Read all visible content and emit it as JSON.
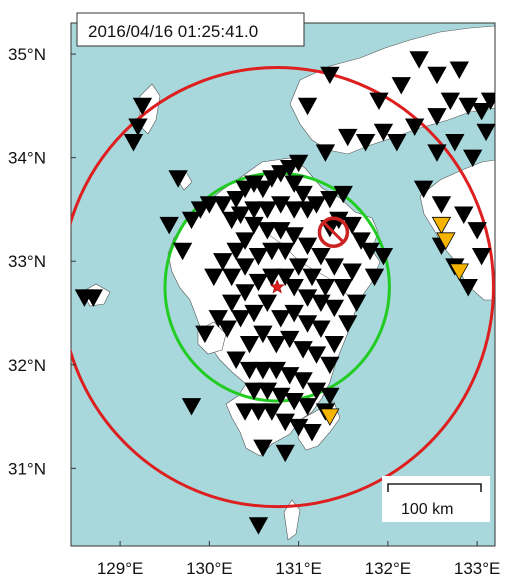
{
  "timestamp": "2016/04/16 01:25:41.0",
  "scale_bar": {
    "label": "100 km",
    "length_km": 100
  },
  "lat_labels": [
    {
      "value": 35,
      "text": "35°N"
    },
    {
      "value": 34,
      "text": "34°N"
    },
    {
      "value": 33,
      "text": "33°N"
    },
    {
      "value": 32,
      "text": "32°N"
    },
    {
      "value": 31,
      "text": "31°N"
    }
  ],
  "lon_labels": [
    {
      "value": 129,
      "text": "129°E"
    },
    {
      "value": 130,
      "text": "130°E"
    },
    {
      "value": 131,
      "text": "131°E"
    },
    {
      "value": 132,
      "text": "132°E"
    },
    {
      "value": 133,
      "text": "133°E"
    }
  ],
  "extent": {
    "lon": [
      128.45,
      133.2
    ],
    "lat": [
      30.25,
      35.3
    ]
  },
  "epicenter": {
    "lon": 130.76,
    "lat": 32.75
  },
  "circles": [
    {
      "name": "s-wave-front",
      "color": "#dd1f1f",
      "center_lon": 130.76,
      "center_lat": 32.75,
      "radius_deg_lat": 2.12
    },
    {
      "name": "p-wave-front",
      "color": "#22cc22",
      "center_lon": 130.76,
      "center_lat": 32.75,
      "radius_deg_lat": 1.1
    }
  ],
  "highlight_station": {
    "lon": 131.39,
    "lat": 33.28,
    "color": "#cc2222"
  },
  "colors": {
    "sea": "#a8d8dc",
    "land": "#ffffff",
    "station": "#000000",
    "triggered": "#f4b400",
    "epicenter": "#dd1f1f"
  },
  "stations": [
    [
      128.7,
      32.65
    ],
    [
      128.6,
      32.65
    ],
    [
      129.25,
      34.5
    ],
    [
      129.2,
      34.3
    ],
    [
      129.15,
      34.15
    ],
    [
      129.65,
      33.8
    ],
    [
      129.55,
      33.35
    ],
    [
      129.7,
      33.1
    ],
    [
      129.8,
      33.4
    ],
    [
      129.9,
      33.5
    ],
    [
      130.0,
      33.55
    ],
    [
      130.15,
      33.55
    ],
    [
      130.3,
      33.6
    ],
    [
      130.4,
      33.7
    ],
    [
      130.5,
      33.75
    ],
    [
      130.6,
      33.7
    ],
    [
      130.7,
      33.8
    ],
    [
      130.8,
      33.85
    ],
    [
      130.9,
      33.9
    ],
    [
      131.0,
      33.95
    ],
    [
      130.95,
      33.75
    ],
    [
      131.05,
      33.65
    ],
    [
      130.25,
      33.4
    ],
    [
      130.35,
      33.45
    ],
    [
      130.5,
      33.5
    ],
    [
      130.65,
      33.5
    ],
    [
      130.8,
      33.55
    ],
    [
      130.95,
      33.5
    ],
    [
      131.1,
      33.5
    ],
    [
      131.2,
      33.55
    ],
    [
      131.35,
      33.6
    ],
    [
      131.5,
      33.65
    ],
    [
      131.45,
      33.4
    ],
    [
      131.6,
      33.35
    ],
    [
      131.7,
      33.2
    ],
    [
      131.8,
      33.1
    ],
    [
      131.95,
      33.05
    ],
    [
      131.85,
      32.85
    ],
    [
      131.6,
      32.9
    ],
    [
      131.4,
      32.95
    ],
    [
      131.25,
      33.05
    ],
    [
      131.1,
      33.15
    ],
    [
      130.95,
      33.25
    ],
    [
      130.8,
      33.3
    ],
    [
      130.65,
      33.3
    ],
    [
      130.5,
      33.35
    ],
    [
      130.4,
      33.2
    ],
    [
      130.3,
      33.1
    ],
    [
      130.15,
      33.0
    ],
    [
      130.05,
      32.85
    ],
    [
      130.25,
      32.85
    ],
    [
      130.4,
      32.95
    ],
    [
      130.55,
      33.05
    ],
    [
      130.7,
      33.1
    ],
    [
      130.85,
      33.1
    ],
    [
      131.0,
      32.95
    ],
    [
      131.15,
      32.85
    ],
    [
      131.3,
      32.75
    ],
    [
      131.5,
      32.75
    ],
    [
      131.65,
      32.6
    ],
    [
      131.55,
      32.4
    ],
    [
      131.4,
      32.55
    ],
    [
      131.25,
      32.6
    ],
    [
      131.1,
      32.65
    ],
    [
      130.95,
      32.75
    ],
    [
      130.85,
      32.85
    ],
    [
      130.7,
      32.85
    ],
    [
      130.55,
      32.8
    ],
    [
      130.4,
      32.7
    ],
    [
      130.25,
      32.6
    ],
    [
      130.1,
      32.45
    ],
    [
      129.95,
      32.3
    ],
    [
      130.2,
      32.35
    ],
    [
      130.35,
      32.45
    ],
    [
      130.5,
      32.5
    ],
    [
      130.65,
      32.6
    ],
    [
      130.8,
      32.45
    ],
    [
      130.95,
      32.5
    ],
    [
      131.1,
      32.4
    ],
    [
      131.25,
      32.35
    ],
    [
      131.4,
      32.2
    ],
    [
      131.35,
      32.0
    ],
    [
      131.2,
      32.1
    ],
    [
      131.05,
      32.15
    ],
    [
      130.9,
      32.25
    ],
    [
      130.75,
      32.2
    ],
    [
      130.6,
      32.3
    ],
    [
      130.45,
      32.2
    ],
    [
      130.3,
      32.05
    ],
    [
      130.45,
      31.95
    ],
    [
      130.6,
      31.95
    ],
    [
      130.75,
      31.95
    ],
    [
      130.9,
      31.9
    ],
    [
      131.05,
      31.85
    ],
    [
      131.2,
      31.75
    ],
    [
      131.35,
      31.7
    ],
    [
      131.3,
      31.55
    ],
    [
      131.1,
      31.6
    ],
    [
      130.95,
      31.65
    ],
    [
      130.8,
      31.7
    ],
    [
      130.65,
      31.75
    ],
    [
      130.5,
      31.75
    ],
    [
      130.4,
      31.55
    ],
    [
      130.55,
      31.55
    ],
    [
      130.7,
      31.55
    ],
    [
      130.85,
      31.45
    ],
    [
      131.0,
      31.4
    ],
    [
      131.15,
      31.35
    ],
    [
      130.6,
      31.2
    ],
    [
      130.85,
      31.15
    ],
    [
      129.8,
      31.6
    ],
    [
      130.55,
      30.45
    ],
    [
      131.3,
      34.05
    ],
    [
      131.55,
      34.2
    ],
    [
      131.75,
      34.15
    ],
    [
      131.95,
      34.25
    ],
    [
      131.1,
      34.5
    ],
    [
      131.35,
      34.8
    ],
    [
      131.9,
      34.55
    ],
    [
      132.15,
      34.7
    ],
    [
      132.35,
      34.95
    ],
    [
      132.55,
      34.8
    ],
    [
      132.7,
      34.55
    ],
    [
      132.8,
      34.85
    ],
    [
      132.9,
      34.5
    ],
    [
      133.05,
      34.45
    ],
    [
      133.15,
      34.55
    ],
    [
      132.55,
      34.4
    ],
    [
      132.3,
      34.3
    ],
    [
      132.1,
      34.15
    ],
    [
      132.55,
      34.05
    ],
    [
      132.75,
      34.15
    ],
    [
      132.95,
      34.0
    ],
    [
      133.1,
      34.25
    ],
    [
      132.4,
      33.7
    ],
    [
      132.6,
      33.55
    ],
    [
      132.85,
      33.45
    ],
    [
      133.0,
      33.3
    ],
    [
      133.05,
      33.05
    ],
    [
      132.9,
      32.75
    ],
    [
      132.75,
      32.95
    ],
    [
      132.6,
      33.15
    ],
    [
      131.35,
      33.32
    ]
  ],
  "triggered_stations": [
    [
      132.6,
      33.35
    ],
    [
      132.65,
      33.2
    ],
    [
      132.8,
      32.9
    ],
    [
      131.35,
      31.5
    ]
  ]
}
